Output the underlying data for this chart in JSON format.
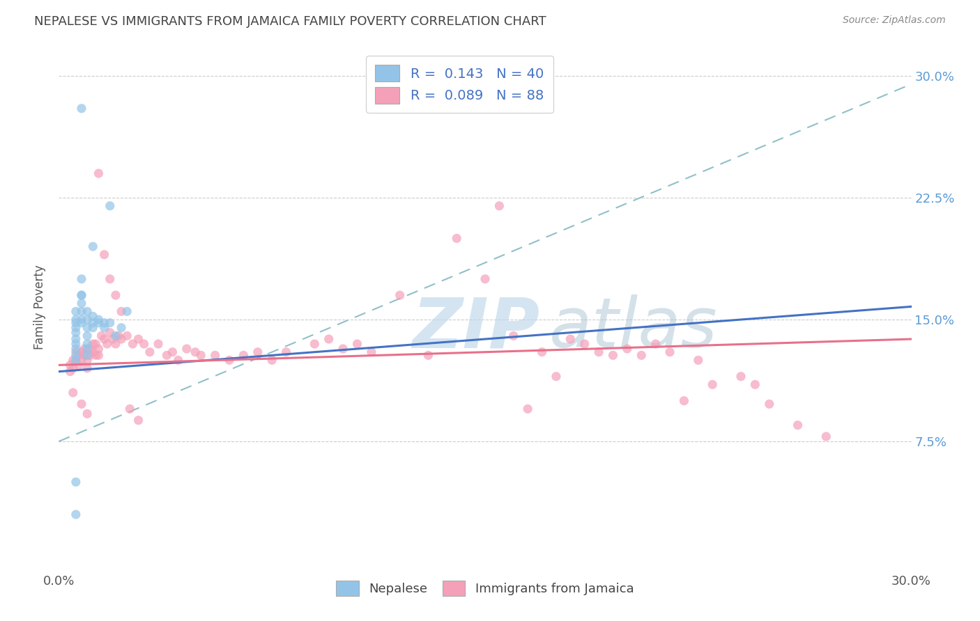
{
  "title": "NEPALESE VS IMMIGRANTS FROM JAMAICA FAMILY POVERTY CORRELATION CHART",
  "source": "Source: ZipAtlas.com",
  "ylabel": "Family Poverty",
  "yticks": [
    "7.5%",
    "15.0%",
    "22.5%",
    "30.0%"
  ],
  "ytick_vals": [
    0.075,
    0.15,
    0.225,
    0.3
  ],
  "xlim": [
    0.0,
    0.3
  ],
  "ylim": [
    -0.005,
    0.32
  ],
  "legend_entry1": "R =  0.143   N = 40",
  "legend_entry2": "R =  0.089   N = 88",
  "color_blue": "#93C4E8",
  "color_pink": "#F4A0B8",
  "color_blue_line": "#4472C4",
  "color_pink_line": "#E8708A",
  "color_trendline_dashed": "#90C0C8",
  "nepalese_x": [
    0.008,
    0.018,
    0.012,
    0.008,
    0.008,
    0.006,
    0.006,
    0.006,
    0.006,
    0.006,
    0.006,
    0.006,
    0.006,
    0.006,
    0.006,
    0.008,
    0.008,
    0.008,
    0.008,
    0.008,
    0.01,
    0.01,
    0.01,
    0.01,
    0.01,
    0.01,
    0.01,
    0.012,
    0.012,
    0.012,
    0.014,
    0.014,
    0.016,
    0.016,
    0.018,
    0.02,
    0.022,
    0.024,
    0.006,
    0.006
  ],
  "nepalese_y": [
    0.28,
    0.22,
    0.195,
    0.175,
    0.165,
    0.155,
    0.15,
    0.148,
    0.145,
    0.142,
    0.138,
    0.135,
    0.132,
    0.128,
    0.125,
    0.165,
    0.16,
    0.155,
    0.15,
    0.148,
    0.155,
    0.15,
    0.145,
    0.14,
    0.135,
    0.132,
    0.128,
    0.152,
    0.148,
    0.145,
    0.15,
    0.148,
    0.148,
    0.145,
    0.148,
    0.14,
    0.145,
    0.155,
    0.05,
    0.03
  ],
  "jamaica_x": [
    0.004,
    0.004,
    0.005,
    0.005,
    0.006,
    0.006,
    0.007,
    0.007,
    0.008,
    0.008,
    0.009,
    0.009,
    0.01,
    0.01,
    0.011,
    0.011,
    0.012,
    0.012,
    0.013,
    0.013,
    0.014,
    0.014,
    0.015,
    0.016,
    0.017,
    0.018,
    0.019,
    0.02,
    0.021,
    0.022,
    0.024,
    0.026,
    0.028,
    0.03,
    0.032,
    0.035,
    0.038,
    0.04,
    0.042,
    0.045,
    0.048,
    0.05,
    0.055,
    0.06,
    0.065,
    0.07,
    0.075,
    0.08,
    0.09,
    0.095,
    0.1,
    0.105,
    0.11,
    0.12,
    0.13,
    0.14,
    0.15,
    0.155,
    0.16,
    0.165,
    0.17,
    0.175,
    0.18,
    0.185,
    0.19,
    0.195,
    0.2,
    0.205,
    0.21,
    0.215,
    0.22,
    0.225,
    0.23,
    0.24,
    0.245,
    0.25,
    0.26,
    0.27,
    0.014,
    0.016,
    0.018,
    0.02,
    0.022,
    0.025,
    0.028,
    0.005,
    0.008,
    0.01
  ],
  "jamaica_y": [
    0.122,
    0.118,
    0.125,
    0.12,
    0.13,
    0.125,
    0.128,
    0.122,
    0.13,
    0.125,
    0.132,
    0.128,
    0.125,
    0.12,
    0.132,
    0.128,
    0.135,
    0.13,
    0.135,
    0.128,
    0.132,
    0.128,
    0.14,
    0.138,
    0.135,
    0.142,
    0.138,
    0.135,
    0.14,
    0.138,
    0.14,
    0.135,
    0.138,
    0.135,
    0.13,
    0.135,
    0.128,
    0.13,
    0.125,
    0.132,
    0.13,
    0.128,
    0.128,
    0.125,
    0.128,
    0.13,
    0.125,
    0.13,
    0.135,
    0.138,
    0.132,
    0.135,
    0.13,
    0.165,
    0.128,
    0.2,
    0.175,
    0.22,
    0.14,
    0.095,
    0.13,
    0.115,
    0.138,
    0.135,
    0.13,
    0.128,
    0.132,
    0.128,
    0.135,
    0.13,
    0.1,
    0.125,
    0.11,
    0.115,
    0.11,
    0.098,
    0.085,
    0.078,
    0.24,
    0.19,
    0.175,
    0.165,
    0.155,
    0.095,
    0.088,
    0.105,
    0.098,
    0.092
  ],
  "blue_line": [
    0.0,
    0.3,
    0.118,
    0.158
  ],
  "pink_line": [
    0.0,
    0.3,
    0.122,
    0.138
  ],
  "dashed_line": [
    0.0,
    0.3,
    0.075,
    0.295
  ]
}
